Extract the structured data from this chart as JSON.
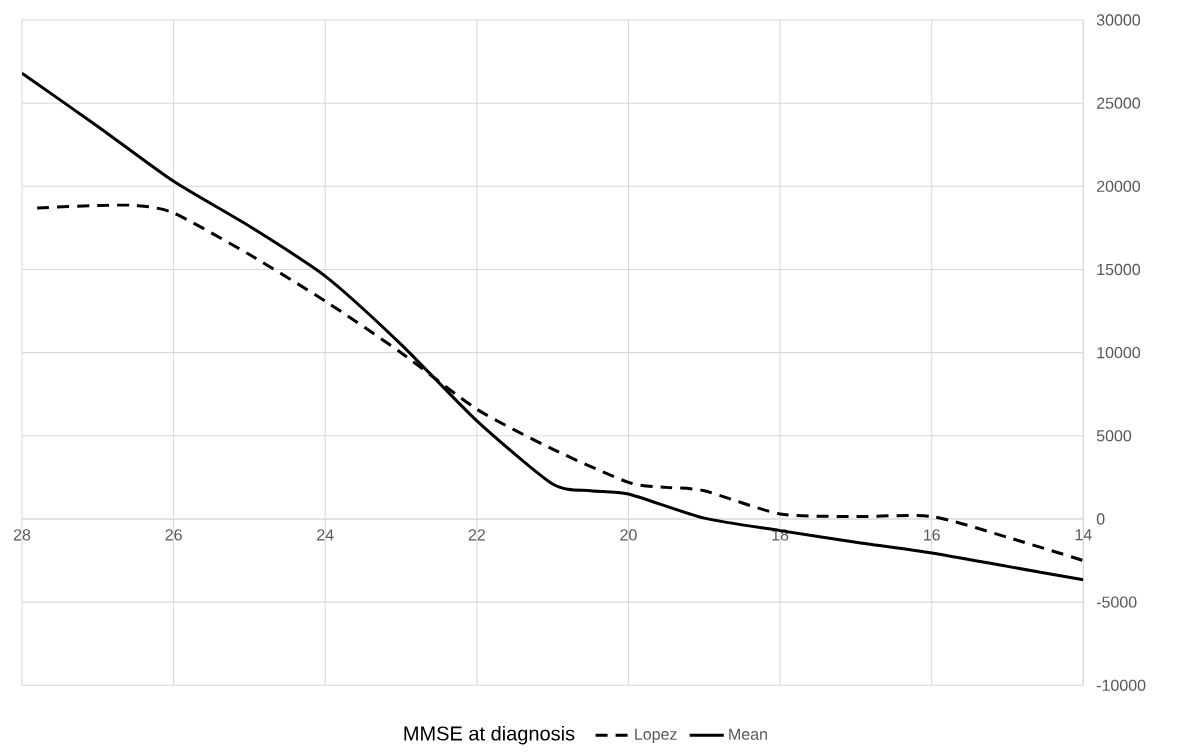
{
  "chart_data": {
    "type": "line",
    "xlabel": "MMSE at diagnosis",
    "xlim": [
      28,
      14
    ],
    "xticks": [
      28,
      26,
      24,
      22,
      20,
      18,
      16,
      14
    ],
    "ylim": [
      -10000,
      30000
    ],
    "yticks": [
      -10000,
      -5000,
      0,
      5000,
      10000,
      15000,
      20000,
      25000,
      30000
    ],
    "grid": true,
    "legend": "bottom",
    "series": [
      {
        "name": "Lopez",
        "color": "#000000",
        "line_style": "dashed",
        "x": [
          27.8,
          27,
          26.5,
          26,
          25,
          24,
          23,
          22,
          21,
          20,
          19.5,
          19,
          18,
          17,
          16,
          15,
          14
        ],
        "values": [
          18700,
          18850,
          18850,
          18400,
          15900,
          13100,
          10000,
          6600,
          4200,
          2200,
          1900,
          1700,
          300,
          150,
          150,
          -1100,
          -2500
        ]
      },
      {
        "name": "Mean",
        "color": "#000000",
        "line_style": "solid",
        "x": [
          28,
          27,
          26,
          25,
          24,
          23,
          22,
          21,
          20.5,
          20,
          19,
          18,
          17,
          16,
          15,
          14
        ],
        "values": [
          26800,
          23600,
          20300,
          17600,
          14600,
          10500,
          5900,
          2100,
          1700,
          1500,
          50,
          -700,
          -1400,
          -2050,
          -2850,
          -3650
        ]
      }
    ]
  }
}
